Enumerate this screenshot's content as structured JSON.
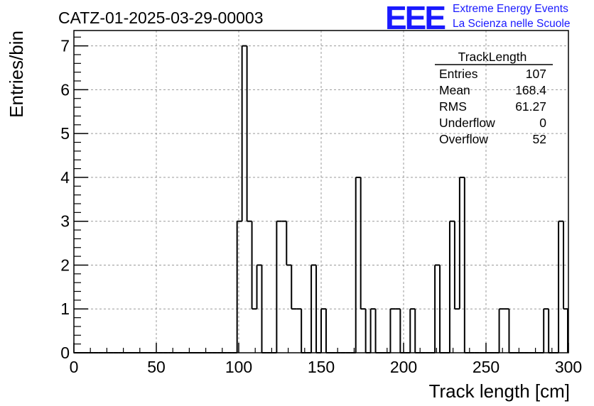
{
  "title": "CATZ-01-2025-03-29-00003",
  "logo": {
    "mark": "EEE",
    "line1": "Extreme Energy Events",
    "line2": "La Scienza nelle Scuole",
    "color": "#1a1aff"
  },
  "stats": {
    "name": "TrackLength",
    "rows": [
      {
        "label": "Entries",
        "value": "107"
      },
      {
        "label": "Mean",
        "value": "168.4"
      },
      {
        "label": "RMS",
        "value": "61.27"
      },
      {
        "label": "Underflow",
        "value": "0"
      },
      {
        "label": "Overflow",
        "value": "52"
      }
    ]
  },
  "chart_data": {
    "type": "bar",
    "style": "step-histogram",
    "title": "CATZ-01-2025-03-29-00003",
    "xlabel": "Track length [cm]",
    "ylabel": "Entries/bin",
    "xlim": [
      0,
      300
    ],
    "ylim": [
      0,
      7.35
    ],
    "bin_width": 3,
    "grid": true,
    "x_ticks": [
      0,
      50,
      100,
      150,
      200,
      250,
      300
    ],
    "y_ticks": [
      0,
      1,
      2,
      3,
      4,
      5,
      6,
      7
    ],
    "bin_low_edges": [
      0,
      3,
      6,
      9,
      12,
      15,
      18,
      21,
      24,
      27,
      30,
      33,
      36,
      39,
      42,
      45,
      48,
      51,
      54,
      57,
      60,
      63,
      66,
      69,
      72,
      75,
      78,
      81,
      84,
      87,
      90,
      93,
      96,
      99,
      102,
      105,
      108,
      111,
      114,
      117,
      120,
      123,
      126,
      129,
      132,
      135,
      138,
      141,
      144,
      147,
      150,
      153,
      156,
      159,
      162,
      165,
      168,
      171,
      174,
      177,
      180,
      183,
      186,
      189,
      192,
      195,
      198,
      201,
      204,
      207,
      210,
      213,
      216,
      219,
      222,
      225,
      228,
      231,
      234,
      237,
      240,
      243,
      246,
      249,
      252,
      255,
      258,
      261,
      264,
      267,
      270,
      273,
      276,
      279,
      282,
      285,
      288,
      291,
      294,
      297
    ],
    "values": [
      0,
      0,
      0,
      0,
      0,
      0,
      0,
      0,
      0,
      0,
      0,
      0,
      0,
      0,
      0,
      0,
      0,
      0,
      0,
      0,
      0,
      0,
      0,
      0,
      0,
      0,
      0,
      0,
      0,
      0,
      0,
      0,
      0,
      3,
      7,
      3,
      1,
      2,
      0,
      0,
      0,
      3,
      3,
      2,
      1,
      1,
      0,
      0,
      2,
      0,
      1,
      0,
      0,
      0,
      0,
      0,
      0,
      4,
      1,
      0,
      1,
      0,
      0,
      0,
      1,
      1,
      0,
      0,
      1,
      0,
      0,
      0,
      0,
      2,
      0,
      0,
      3,
      1,
      4,
      0,
      0,
      0,
      0,
      0,
      0,
      0,
      1,
      1,
      0,
      0,
      0,
      0,
      0,
      0,
      0,
      1,
      0,
      0,
      3,
      1
    ]
  }
}
